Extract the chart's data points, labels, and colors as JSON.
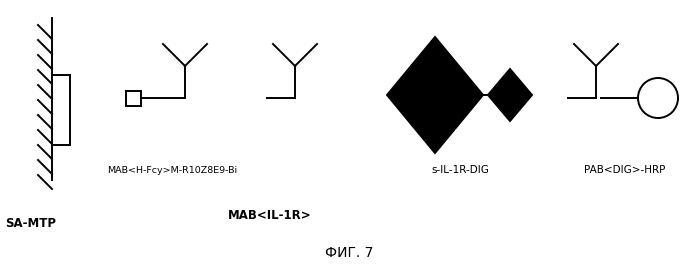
{
  "bg_color": "#ffffff",
  "title": "ФИГ. 7",
  "title_fontsize": 10,
  "label_fontsize": 7.5,
  "bold_label_fontsize": 8.5,
  "sa_mtp_label": "SA-MTP",
  "mab_il1r_label": "MAB<IL-1R>",
  "mab_hfcy_label": "MAB<H-Fcy>M-R10Z8E9-Bi",
  "sil1r_label": "s-IL-1R-DIG",
  "pab_label": "PAB<DIG>-HRP",
  "line_color": "#000000",
  "fill_black": "#000000",
  "fill_white": "#ffffff",
  "lw": 1.4
}
